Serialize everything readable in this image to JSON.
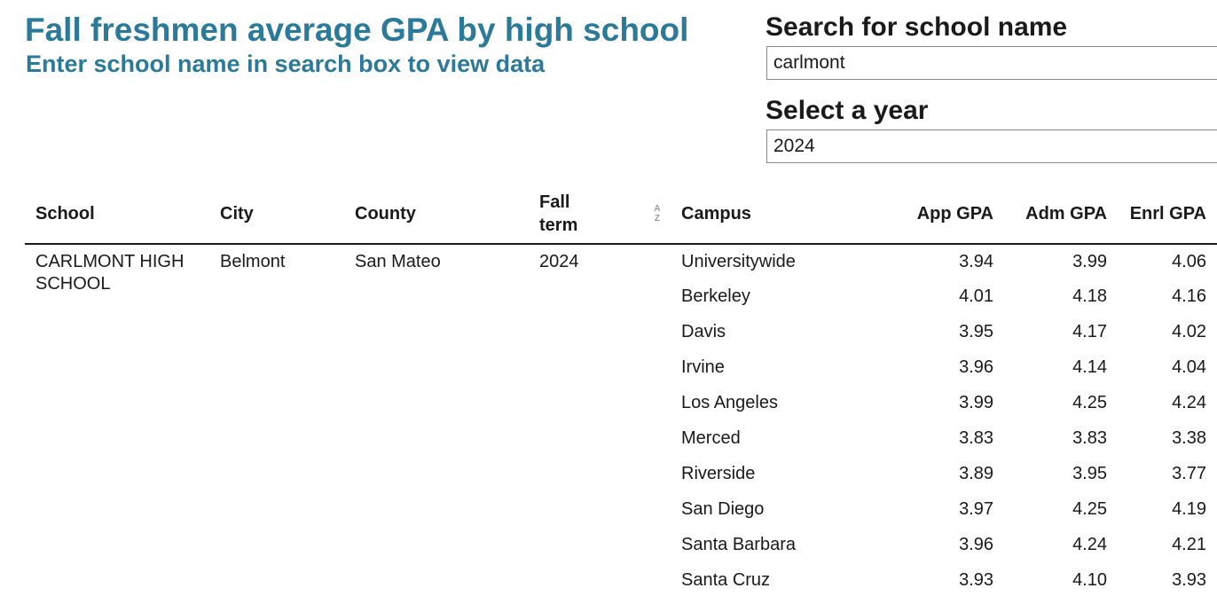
{
  "header": {
    "title": "Fall freshmen average GPA by high school",
    "subtitle": "Enter school name in search box to view data"
  },
  "filters": {
    "search_label": "Search for school name",
    "search_value": "carlmont",
    "year_label": "Select a year",
    "year_value": "2024"
  },
  "table": {
    "columns": {
      "school": "School",
      "city": "City",
      "county": "County",
      "fall_term_line1": "Fall",
      "fall_term_line2": "term",
      "campus": "Campus",
      "app_gpa": "App GPA",
      "adm_gpa": "Adm GPA",
      "enrl_gpa": "Enrl GPA"
    },
    "sort_icon": "sort-az-icon",
    "school": "CARLMONT HIGH SCHOOL",
    "city": "Belmont",
    "county": "San Mateo",
    "fall_term": "2024",
    "rows": [
      {
        "campus": "Universitywide",
        "app": "3.94",
        "adm": "3.99",
        "enrl": "4.06"
      },
      {
        "campus": "Berkeley",
        "app": "4.01",
        "adm": "4.18",
        "enrl": "4.16"
      },
      {
        "campus": "Davis",
        "app": "3.95",
        "adm": "4.17",
        "enrl": "4.02"
      },
      {
        "campus": "Irvine",
        "app": "3.96",
        "adm": "4.14",
        "enrl": "4.04"
      },
      {
        "campus": "Los Angeles",
        "app": "3.99",
        "adm": "4.25",
        "enrl": "4.24"
      },
      {
        "campus": "Merced",
        "app": "3.83",
        "adm": "3.83",
        "enrl": "3.38"
      },
      {
        "campus": "Riverside",
        "app": "3.89",
        "adm": "3.95",
        "enrl": "3.77"
      },
      {
        "campus": "San Diego",
        "app": "3.97",
        "adm": "4.25",
        "enrl": "4.19"
      },
      {
        "campus": "Santa Barbara",
        "app": "3.96",
        "adm": "4.24",
        "enrl": "4.21"
      },
      {
        "campus": "Santa Cruz",
        "app": "3.93",
        "adm": "4.10",
        "enrl": "3.93"
      }
    ]
  },
  "colors": {
    "title": "#2b7a99",
    "text": "#1a1a1a"
  }
}
